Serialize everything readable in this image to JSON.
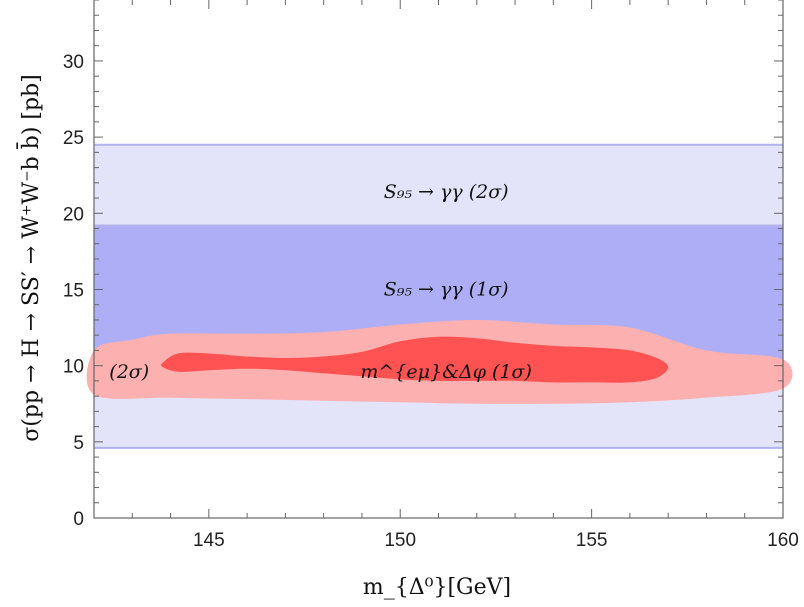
{
  "chart_data": {
    "type": "area",
    "xlabel": "m_{Δ⁰}[GeV]",
    "ylabel": "σ(pp → H → SS′ → W⁺W⁻b b̄) [pb]",
    "xlim": [
      142,
      160
    ],
    "ylim": [
      0,
      34
    ],
    "x_ticks": [
      145,
      150,
      155,
      160
    ],
    "y_ticks": [
      0,
      5,
      10,
      15,
      20,
      25,
      30
    ],
    "grid": false,
    "bands": [
      {
        "label": "S₉₅ → γγ (2σ)",
        "y_range": [
          4.6,
          24.5
        ],
        "color": "#e3e3fa"
      },
      {
        "label": "S₉₅ → γγ (1σ)",
        "y_range": [
          9.4,
          19.2
        ],
        "color": "#aeaef6"
      }
    ],
    "regions": [
      {
        "label": "(2σ)",
        "color": "#fdb0b0",
        "upper": [
          [
            142,
            11.0
          ],
          [
            143,
            11.7
          ],
          [
            144,
            12.1
          ],
          [
            146,
            12.1
          ],
          [
            148,
            12.2
          ],
          [
            150,
            12.7
          ],
          [
            152,
            13.0
          ],
          [
            154,
            12.7
          ],
          [
            156,
            12.5
          ],
          [
            158,
            11.0
          ],
          [
            160,
            10.4
          ]
        ],
        "lower": [
          [
            160,
            8.5
          ],
          [
            158,
            7.9
          ],
          [
            156,
            7.6
          ],
          [
            154,
            7.5
          ],
          [
            152,
            7.5
          ],
          [
            150,
            7.6
          ],
          [
            148,
            7.7
          ],
          [
            146,
            7.8
          ],
          [
            144,
            7.9
          ],
          [
            142,
            8.1
          ]
        ]
      },
      {
        "label": "m^{eμ}&Δφ (1σ)",
        "color": "#ff5252",
        "upper": [
          [
            143.8,
            10.2
          ],
          [
            144.2,
            10.8
          ],
          [
            145,
            10.8
          ],
          [
            146,
            10.6
          ],
          [
            147,
            10.5
          ],
          [
            148,
            10.6
          ],
          [
            149,
            10.9
          ],
          [
            150,
            11.6
          ],
          [
            151,
            11.9
          ],
          [
            152,
            11.8
          ],
          [
            153,
            11.5
          ],
          [
            154,
            11.3
          ],
          [
            155,
            11.2
          ],
          [
            156,
            11.0
          ],
          [
            156.7,
            10.5
          ],
          [
            157,
            9.9
          ]
        ],
        "lower": [
          [
            156.7,
            9.2
          ],
          [
            156,
            8.9
          ],
          [
            155,
            8.9
          ],
          [
            154,
            8.9
          ],
          [
            153,
            9.0
          ],
          [
            152,
            9.0
          ],
          [
            151,
            9.0
          ],
          [
            150,
            9.1
          ],
          [
            149,
            9.3
          ],
          [
            148,
            9.5
          ],
          [
            147,
            9.7
          ],
          [
            146,
            9.8
          ],
          [
            145,
            9.7
          ],
          [
            144.2,
            9.6
          ],
          [
            143.8,
            9.9
          ]
        ]
      }
    ]
  }
}
